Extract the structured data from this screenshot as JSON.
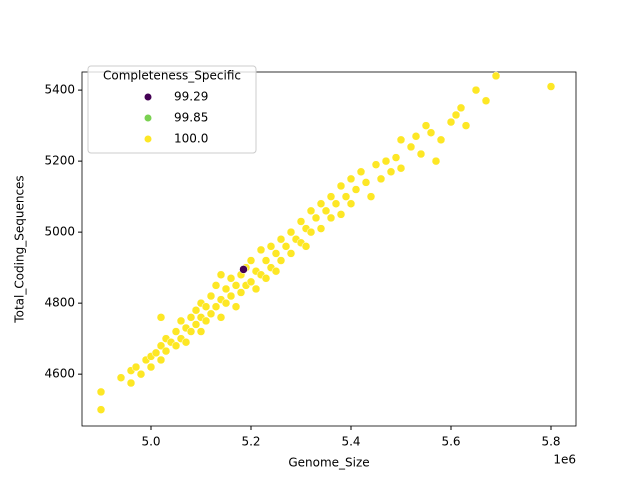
{
  "chart_data": {
    "type": "scatter",
    "x_label": "Genome_Size",
    "y_label": "Total_Coding_Sequences",
    "x_offset_label": "1e6",
    "legend_title": "Completeness_Specific",
    "legend_position": "upper left",
    "xlim": [
      4862000,
      5850000
    ],
    "ylim": [
      4454,
      5451
    ],
    "xticks": [
      {
        "value": 5000000,
        "label": "5.0"
      },
      {
        "value": 5200000,
        "label": "5.2"
      },
      {
        "value": 5400000,
        "label": "5.4"
      },
      {
        "value": 5600000,
        "label": "5.6"
      },
      {
        "value": 5800000,
        "label": "5.8"
      }
    ],
    "yticks": [
      4600,
      4800,
      5000,
      5200,
      5400
    ],
    "series": [
      {
        "name": "99.85",
        "color": "#7ad151",
        "x": [
          5200000
        ],
        "values": [
          4860
        ]
      },
      {
        "name": "100.0",
        "color": "#fde725",
        "x": [
          4900000,
          4900000,
          4940000,
          4960000,
          4960000,
          4970000,
          4980000,
          4990000,
          5000000,
          5000000,
          5010000,
          5020000,
          5020000,
          5030000,
          5030000,
          5040000,
          5050000,
          5050000,
          5060000,
          5060000,
          5070000,
          5070000,
          5080000,
          5080000,
          5090000,
          5090000,
          5100000,
          5100000,
          5100000,
          5110000,
          5110000,
          5120000,
          5120000,
          5130000,
          5130000,
          5140000,
          5140000,
          5150000,
          5150000,
          5160000,
          5160000,
          5170000,
          5170000,
          5180000,
          5180000,
          5190000,
          5190000,
          5200000,
          5200000,
          5210000,
          5210000,
          5220000,
          5220000,
          5230000,
          5230000,
          5240000,
          5240000,
          5250000,
          5250000,
          5260000,
          5260000,
          5270000,
          5280000,
          5280000,
          5290000,
          5300000,
          5300000,
          5310000,
          5310000,
          5320000,
          5320000,
          5330000,
          5340000,
          5340000,
          5350000,
          5360000,
          5360000,
          5370000,
          5380000,
          5380000,
          5390000,
          5400000,
          5400000,
          5410000,
          5420000,
          5430000,
          5440000,
          5450000,
          5460000,
          5470000,
          5480000,
          5490000,
          5500000,
          5500000,
          5520000,
          5530000,
          5540000,
          5550000,
          5560000,
          5570000,
          5580000,
          5600000,
          5610000,
          5620000,
          5630000,
          5650000,
          5670000,
          5690000,
          5800000,
          5020000,
          5140000
        ],
        "values": [
          4550,
          4500,
          4590,
          4575,
          4610,
          4620,
          4600,
          4640,
          4650,
          4620,
          4660,
          4680,
          4640,
          4700,
          4665,
          4690,
          4720,
          4680,
          4750,
          4700,
          4730,
          4690,
          4760,
          4720,
          4780,
          4740,
          4800,
          4760,
          4720,
          4790,
          4750,
          4820,
          4770,
          4850,
          4790,
          4810,
          4760,
          4840,
          4800,
          4870,
          4820,
          4850,
          4790,
          4880,
          4830,
          4900,
          4850,
          4920,
          4860,
          4890,
          4840,
          4950,
          4880,
          4920,
          4870,
          4960,
          4900,
          4940,
          4890,
          4980,
          4920,
          4960,
          5000,
          4940,
          4980,
          5030,
          4970,
          5010,
          4960,
          5060,
          5000,
          5040,
          5080,
          5010,
          5060,
          5100,
          5040,
          5080,
          5130,
          5050,
          5100,
          5150,
          5080,
          5120,
          5170,
          5140,
          5100,
          5190,
          5150,
          5200,
          5170,
          5210,
          5260,
          5180,
          5240,
          5270,
          5220,
          5300,
          5280,
          5200,
          5260,
          5310,
          5330,
          5350,
          5300,
          5400,
          5370,
          5440,
          5410,
          4760,
          4880
        ]
      },
      {
        "name": "99.29",
        "color": "#440154",
        "x": [
          5185000
        ],
        "values": [
          4895
        ]
      }
    ]
  }
}
